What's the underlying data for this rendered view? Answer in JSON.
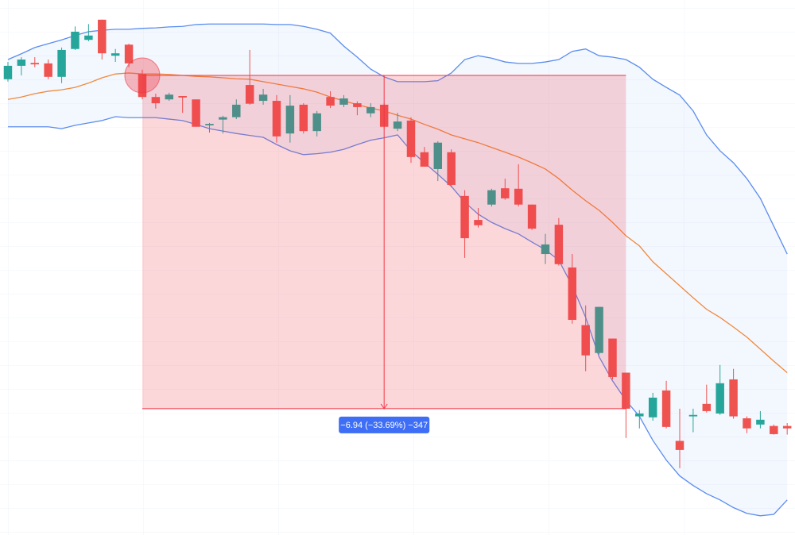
{
  "chart_data": {
    "type": "candlestick",
    "categories": [
      null,
      null,
      null,
      null,
      null,
      null,
      null,
      null,
      null,
      null,
      null,
      null,
      null,
      null,
      null,
      null,
      null,
      null,
      null,
      null,
      null,
      null,
      null,
      null,
      null,
      null,
      null,
      null,
      null,
      null,
      null,
      null,
      null,
      null,
      null,
      null,
      null,
      null,
      null,
      null,
      null,
      null,
      null,
      null,
      null,
      null,
      null,
      null,
      null,
      null,
      null,
      null,
      null,
      null,
      null,
      null,
      null,
      null,
      null
    ],
    "open": [
      20.52,
      20.8,
      20.86,
      20.85,
      20.57,
      21.15,
      21.34,
      21.76,
      21.01,
      21.24,
      20.63,
      20.15,
      20.1,
      20.17,
      20.1,
      19.56,
      19.68,
      19.73,
      20.4,
      20.07,
      20.07,
      19.39,
      19.99,
      19.44,
      20.15,
      19.99,
      20.02,
      19.81,
      19.99,
      19.49,
      19.66,
      19.0,
      18.65,
      19.0,
      18.09,
      17.59,
      17.91,
      18.25,
      18.24,
      17.91,
      16.88,
      17.49,
      16.6,
      15.4,
      14.82,
      15.12,
      14.41,
      13.5,
      13.48,
      14.04,
      12.99,
      13.5,
      13.76,
      13.56,
      14.27,
      13.46,
      13.33,
      13.3,
      13.3
    ],
    "high": [
      20.88,
      20.98,
      20.98,
      20.93,
      21.18,
      21.62,
      21.67,
      21.76,
      21.15,
      21.26,
      20.72,
      20.22,
      20.24,
      20.17,
      20.1,
      19.61,
      19.76,
      20.1,
      21.13,
      20.32,
      20.19,
      20.19,
      20.02,
      19.86,
      20.27,
      20.19,
      20.06,
      20.02,
      20.02,
      19.82,
      19.73,
      19.11,
      19.23,
      19.06,
      18.21,
      17.84,
      18.24,
      18.45,
      18.75,
      17.91,
      17.3,
      17.63,
      16.88,
      15.81,
      15.78,
      15.12,
      14.41,
      13.63,
      13.99,
      14.24,
      13.66,
      13.66,
      14.16,
      14.57,
      14.49,
      13.5,
      13.61,
      13.33,
      13.36
    ],
    "low": [
      20.47,
      20.6,
      20.77,
      20.52,
      20.44,
      21.13,
      21.31,
      20.93,
      20.88,
      20.77,
      20.1,
      19.91,
      20.07,
      19.82,
      19.53,
      19.41,
      19.39,
      19.69,
      19.99,
      19.99,
      19.2,
      19.2,
      19.39,
      19.33,
      19.92,
      19.94,
      19.77,
      19.73,
      19.49,
      19.44,
      18.78,
      18.7,
      18.4,
      18.27,
      16.8,
      17.43,
      17.87,
      18.01,
      17.87,
      17.38,
      16.67,
      16.64,
      15.43,
      14.44,
      14.79,
      14.27,
      13.05,
      13.25,
      13.41,
      13.25,
      12.42,
      13.17,
      13.58,
      13.53,
      13.45,
      13.15,
      13.25,
      13.12,
      13.12
    ],
    "close": [
      20.8,
      20.93,
      20.83,
      20.57,
      21.13,
      21.51,
      21.43,
      21.06,
      21.06,
      20.85,
      20.15,
      20.02,
      20.2,
      20.14,
      19.53,
      19.59,
      19.73,
      19.99,
      20.01,
      20.2,
      19.33,
      19.97,
      19.44,
      19.81,
      19.97,
      20.12,
      19.94,
      19.94,
      19.53,
      19.64,
      18.9,
      18.7,
      19.2,
      18.32,
      17.21,
      17.48,
      18.21,
      18.04,
      17.91,
      17.41,
      17.08,
      16.67,
      15.51,
      14.77,
      15.78,
      14.32,
      13.66,
      13.56,
      13.89,
      13.28,
      12.8,
      13.53,
      13.61,
      14.19,
      13.5,
      13.25,
      13.43,
      13.13,
      13.25
    ],
    "up_color": "#26a69a",
    "down_color": "#ef5350",
    "bands": {
      "upper": [
        20.93,
        21.05,
        21.18,
        21.26,
        21.34,
        21.43,
        21.51,
        21.54,
        21.56,
        21.56,
        21.58,
        21.59,
        21.61,
        21.62,
        21.66,
        21.67,
        21.67,
        21.67,
        21.67,
        21.67,
        21.66,
        21.66,
        21.62,
        21.56,
        21.48,
        21.21,
        20.98,
        20.73,
        20.57,
        20.47,
        20.47,
        20.47,
        20.49,
        20.65,
        20.93,
        21.01,
        20.96,
        20.88,
        20.85,
        20.85,
        20.88,
        20.93,
        21.1,
        21.15,
        21.01,
        20.98,
        20.93,
        20.77,
        20.52,
        20.35,
        20.19,
        19.86,
        19.36,
        19.03,
        18.78,
        18.45,
        18.04,
        17.46,
        16.88
      ],
      "middle": [
        20.1,
        20.15,
        20.22,
        20.27,
        20.3,
        20.35,
        20.44,
        20.55,
        20.63,
        20.65,
        20.63,
        20.63,
        20.62,
        20.6,
        20.58,
        20.57,
        20.55,
        20.53,
        20.52,
        20.47,
        20.42,
        20.37,
        20.32,
        20.25,
        20.15,
        20.07,
        19.99,
        19.92,
        19.86,
        19.77,
        19.69,
        19.58,
        19.48,
        19.36,
        19.28,
        19.2,
        19.1,
        19.0,
        18.9,
        18.78,
        18.65,
        18.45,
        18.21,
        17.99,
        17.79,
        17.54,
        17.26,
        17.05,
        16.72,
        16.47,
        16.22,
        15.97,
        15.73,
        15.56,
        15.36,
        15.15,
        14.9,
        14.65,
        14.41
      ],
      "lower": [
        19.53,
        19.53,
        19.53,
        19.53,
        19.49,
        19.56,
        19.61,
        19.66,
        19.74,
        19.72,
        19.72,
        19.72,
        19.69,
        19.66,
        19.58,
        19.49,
        19.44,
        19.39,
        19.35,
        19.31,
        19.16,
        19.03,
        18.95,
        18.97,
        19.0,
        19.06,
        19.16,
        19.25,
        19.3,
        19.36,
        19.03,
        18.78,
        18.54,
        18.29,
        17.96,
        17.71,
        17.54,
        17.41,
        17.3,
        17.13,
        16.97,
        16.75,
        16.22,
        15.56,
        14.74,
        14.24,
        13.83,
        13.5,
        13.0,
        12.59,
        12.26,
        12.06,
        11.89,
        11.76,
        11.6,
        11.48,
        11.43,
        11.46,
        11.76
      ],
      "band_color": "#5b8def",
      "middle_color": "#f08a3c"
    },
    "measure": {
      "from": 10,
      "to": 46,
      "start": 20.6,
      "end": 13.66,
      "label": "−6.94 (−33.69%) −347",
      "color": "#f23645",
      "label_color": "#3d6ef5"
    },
    "xlim": [
      -0.59,
      58.58
    ],
    "ylim": [
      11.03,
      22.17
    ]
  }
}
